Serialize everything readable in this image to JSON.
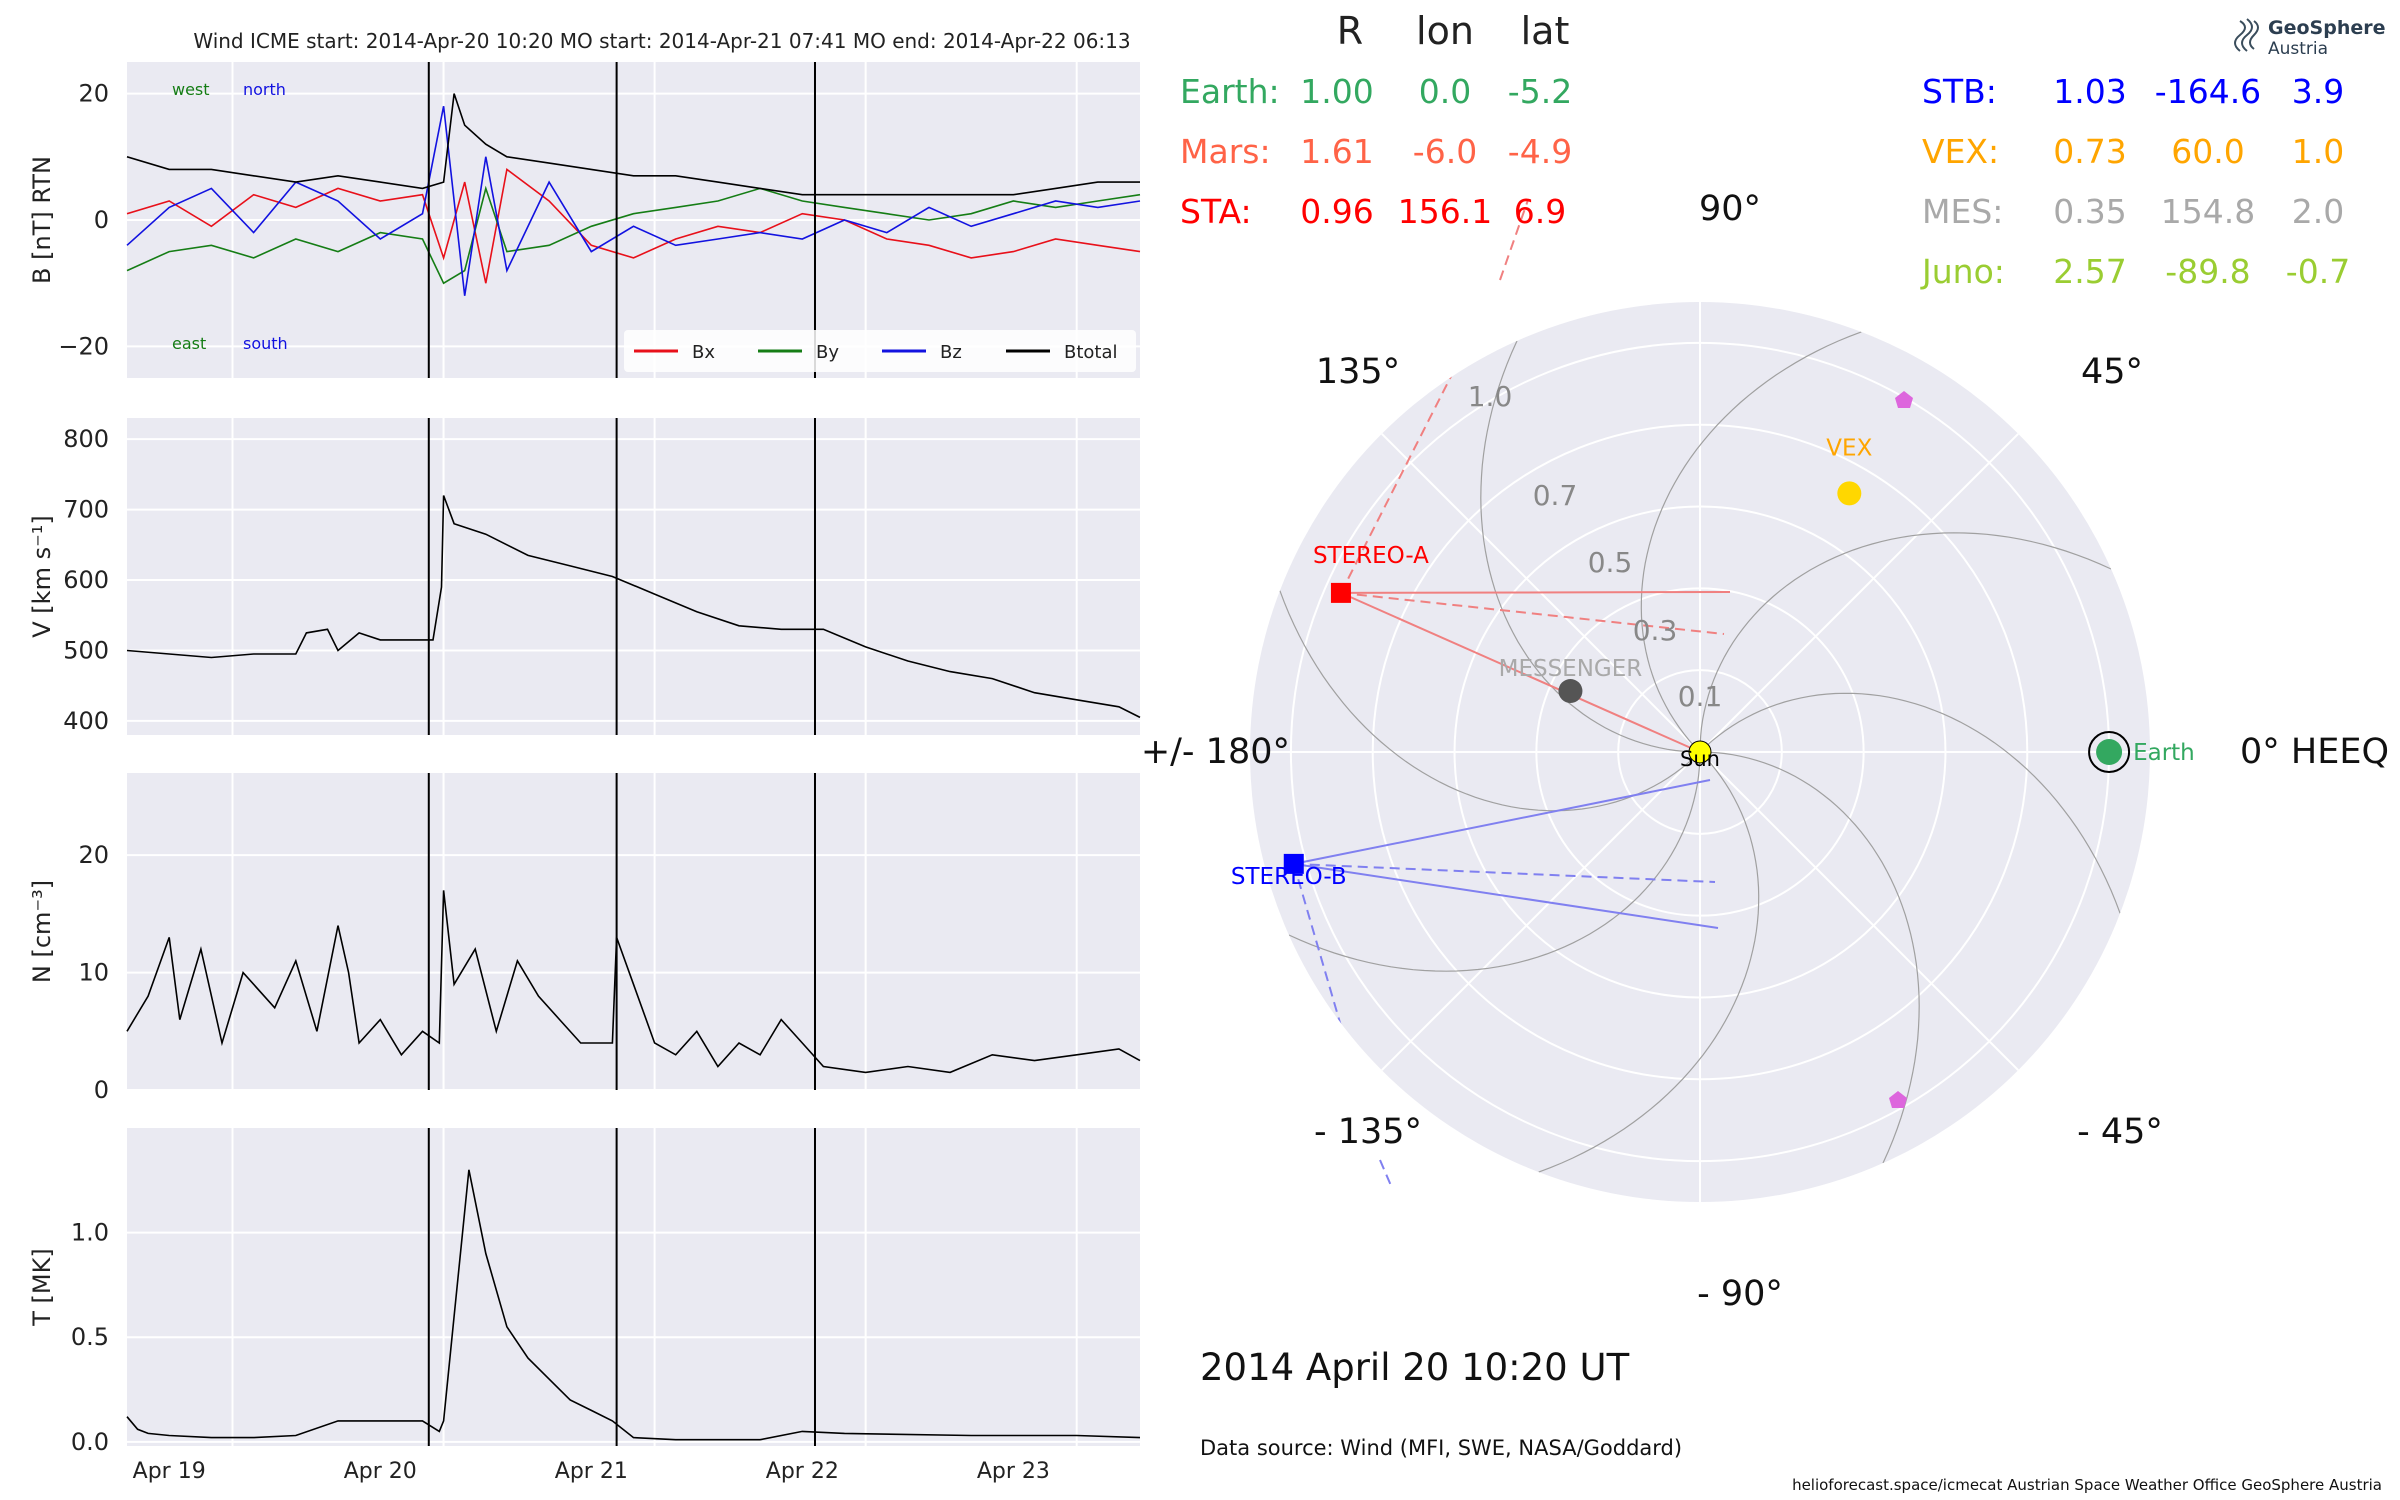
{
  "header": {
    "title": "Wind    ICME start: 2014-Apr-20 10:20   MO start: 2014-Apr-21 07:41   MO end: 2014-Apr-22 06:13"
  },
  "chart_data": [
    {
      "type": "line",
      "panel": "magnetic-field",
      "ylabel": "B [nT] RTN",
      "ylim": [
        -25,
        25
      ],
      "yticks": [
        -20,
        0,
        20
      ],
      "yticklabels": [
        "−20",
        "0",
        "20"
      ],
      "xlim_days": [
        0,
        4.8
      ],
      "xtick_labels": [
        "Apr 19",
        "Apr 20",
        "Apr 21",
        "Apr 22",
        "Apr 23"
      ],
      "annotations": {
        "west": "west",
        "north": "north",
        "east": "east",
        "south": "south"
      },
      "series": [
        {
          "name": "Bx",
          "color": "#e8101a",
          "x": [
            0,
            0.2,
            0.4,
            0.6,
            0.8,
            1.0,
            1.2,
            1.4,
            1.5,
            1.6,
            1.7,
            1.8,
            2.0,
            2.2,
            2.4,
            2.6,
            2.8,
            3.0,
            3.2,
            3.4,
            3.6,
            3.8,
            4.0,
            4.2,
            4.4,
            4.6,
            4.8
          ],
          "y": [
            1,
            3,
            -1,
            4,
            2,
            5,
            3,
            4,
            -6,
            6,
            -10,
            8,
            3,
            -4,
            -6,
            -3,
            -1,
            -2,
            1,
            0,
            -3,
            -4,
            -6,
            -5,
            -3,
            -4,
            -5
          ]
        },
        {
          "name": "By",
          "color": "#157d15",
          "x": [
            0,
            0.2,
            0.4,
            0.6,
            0.8,
            1.0,
            1.2,
            1.4,
            1.5,
            1.6,
            1.7,
            1.8,
            2.0,
            2.2,
            2.4,
            2.6,
            2.8,
            3.0,
            3.2,
            3.4,
            3.6,
            3.8,
            4.0,
            4.2,
            4.4,
            4.6,
            4.8
          ],
          "y": [
            -8,
            -5,
            -4,
            -6,
            -3,
            -5,
            -2,
            -3,
            -10,
            -8,
            5,
            -5,
            -4,
            -1,
            1,
            2,
            3,
            5,
            3,
            2,
            1,
            0,
            1,
            3,
            2,
            3,
            4
          ]
        },
        {
          "name": "Bz",
          "color": "#1212e0",
          "x": [
            0,
            0.2,
            0.4,
            0.6,
            0.8,
            1.0,
            1.2,
            1.4,
            1.5,
            1.6,
            1.7,
            1.8,
            2.0,
            2.2,
            2.4,
            2.6,
            2.8,
            3.0,
            3.2,
            3.4,
            3.6,
            3.8,
            4.0,
            4.2,
            4.4,
            4.6,
            4.8
          ],
          "y": [
            -4,
            2,
            5,
            -2,
            6,
            3,
            -3,
            1,
            18,
            -12,
            10,
            -8,
            6,
            -5,
            -1,
            -4,
            -3,
            -2,
            -3,
            0,
            -2,
            2,
            -1,
            1,
            3,
            2,
            3
          ]
        },
        {
          "name": "Btotal",
          "color": "#000000",
          "x": [
            0,
            0.2,
            0.4,
            0.6,
            0.8,
            1.0,
            1.2,
            1.4,
            1.5,
            1.55,
            1.6,
            1.7,
            1.8,
            2.0,
            2.2,
            2.4,
            2.6,
            2.8,
            3.0,
            3.2,
            3.4,
            3.6,
            3.8,
            4.0,
            4.2,
            4.4,
            4.6,
            4.8
          ],
          "y": [
            10,
            8,
            8,
            7,
            6,
            7,
            6,
            5,
            6,
            20,
            15,
            12,
            10,
            9,
            8,
            7,
            7,
            6,
            5,
            4,
            4,
            4,
            4,
            4,
            4,
            5,
            6,
            6
          ]
        }
      ]
    },
    {
      "type": "line",
      "panel": "speed",
      "ylabel": "V [km s⁻¹]",
      "ylim": [
        380,
        830
      ],
      "yticks": [
        400,
        500,
        600,
        700,
        800
      ],
      "series": [
        {
          "name": "V",
          "color": "#000000",
          "x": [
            0,
            0.2,
            0.4,
            0.6,
            0.8,
            0.85,
            0.95,
            1.0,
            1.1,
            1.2,
            1.3,
            1.45,
            1.49,
            1.5,
            1.55,
            1.7,
            1.9,
            2.1,
            2.3,
            2.5,
            2.7,
            2.9,
            3.1,
            3.3,
            3.5,
            3.7,
            3.9,
            4.1,
            4.3,
            4.5,
            4.7,
            4.8
          ],
          "y": [
            500,
            495,
            490,
            495,
            495,
            525,
            530,
            500,
            525,
            515,
            515,
            515,
            590,
            720,
            680,
            665,
            635,
            620,
            605,
            580,
            555,
            535,
            530,
            530,
            505,
            485,
            470,
            460,
            440,
            430,
            420,
            405
          ]
        }
      ]
    },
    {
      "type": "line",
      "panel": "density",
      "ylabel": "N [cm⁻³]",
      "ylim": [
        0,
        27
      ],
      "yticks": [
        0,
        10,
        20
      ],
      "series": [
        {
          "name": "N",
          "color": "#000000",
          "x": [
            0,
            0.1,
            0.2,
            0.25,
            0.35,
            0.45,
            0.55,
            0.7,
            0.8,
            0.9,
            1.0,
            1.05,
            1.1,
            1.2,
            1.3,
            1.4,
            1.48,
            1.5,
            1.55,
            1.65,
            1.75,
            1.85,
            1.95,
            2.05,
            2.15,
            2.3,
            2.32,
            2.4,
            2.5,
            2.6,
            2.7,
            2.8,
            2.9,
            3.0,
            3.1,
            3.2,
            3.3,
            3.5,
            3.7,
            3.9,
            4.1,
            4.3,
            4.5,
            4.7,
            4.8
          ],
          "y": [
            5,
            8,
            13,
            6,
            12,
            4,
            10,
            7,
            11,
            5,
            14,
            10,
            4,
            6,
            3,
            5,
            4,
            17,
            9,
            12,
            5,
            11,
            8,
            6,
            4,
            4,
            13,
            9,
            4,
            3,
            5,
            2,
            4,
            3,
            6,
            4,
            2,
            1.5,
            2,
            1.5,
            3,
            2.5,
            3,
            3.5,
            2.5
          ]
        }
      ]
    },
    {
      "type": "line",
      "panel": "temperature",
      "ylabel": "T [MK]",
      "ylim": [
        -0.02,
        1.5
      ],
      "yticks": [
        0.0,
        0.5,
        1.0
      ],
      "yticklabels": [
        "0.0",
        "0.5",
        "1.0"
      ],
      "series": [
        {
          "name": "T",
          "color": "#000000",
          "x": [
            0,
            0.05,
            0.1,
            0.2,
            0.4,
            0.6,
            0.8,
            1.0,
            1.4,
            1.48,
            1.5,
            1.55,
            1.62,
            1.7,
            1.8,
            1.9,
            2.0,
            2.1,
            2.2,
            2.3,
            2.4,
            2.6,
            3.0,
            3.2,
            3.4,
            4.0,
            4.5,
            4.8
          ],
          "y": [
            0.12,
            0.06,
            0.04,
            0.03,
            0.02,
            0.02,
            0.03,
            0.1,
            0.1,
            0.05,
            0.1,
            0.6,
            1.3,
            0.9,
            0.55,
            0.4,
            0.3,
            0.2,
            0.15,
            0.1,
            0.02,
            0.01,
            0.01,
            0.05,
            0.04,
            0.03,
            0.03,
            0.02
          ]
        }
      ]
    }
  ],
  "event_lines_days": [
    1.43,
    2.32,
    3.26
  ],
  "positions_table": {
    "headers": [
      "R",
      "lon",
      "lat"
    ],
    "left": [
      {
        "name": "Earth:",
        "r": "1.00",
        "lon": "0.0",
        "lat": "-5.2",
        "color": "#33a860"
      },
      {
        "name": "Mars:",
        "r": "1.61",
        "lon": "-6.0",
        "lat": "-4.9",
        "color": "#ff6347"
      },
      {
        "name": "STA:",
        "r": "0.96",
        "lon": "156.1",
        "lat": "6.9",
        "color": "#ff0000"
      }
    ],
    "right": [
      {
        "name": "STB:",
        "r": "1.03",
        "lon": "-164.6",
        "lat": "3.9",
        "color": "#0000ff"
      },
      {
        "name": "VEX:",
        "r": "0.73",
        "lon": "60.0",
        "lat": "1.0",
        "color": "#ffa500"
      },
      {
        "name": "MES:",
        "r": "0.35",
        "lon": "154.8",
        "lat": "2.0",
        "color": "#a9a9a9"
      },
      {
        "name": "Juno:",
        "r": "2.57",
        "lon": "-89.8",
        "lat": "-0.7",
        "color": "#9acd32"
      }
    ]
  },
  "polar": {
    "angle_labels": [
      "90°",
      "45°",
      "0° HEEQ",
      "- 45°",
      "- 90°",
      "- 135°",
      "+/- 180°",
      "135°"
    ],
    "radial_labels": [
      "0.1",
      "0.3",
      "0.5",
      "0.7",
      "1.0"
    ],
    "objects": [
      {
        "label": "Earth",
        "r": 1.0,
        "lon": 0.0,
        "color": "#33a860"
      },
      {
        "label": "VEX",
        "r": 0.73,
        "lon": 60.0,
        "color": "#ffd700"
      },
      {
        "label": "MESSENGER",
        "r": 0.35,
        "lon": 154.8,
        "color": "#555555"
      },
      {
        "label": "STEREO-A",
        "r": 0.96,
        "lon": 156.1,
        "color": "#ff0000"
      },
      {
        "label": "STEREO-B",
        "r": 1.03,
        "lon": -164.6,
        "color": "#0000ff"
      },
      {
        "label": "Sun",
        "r": 0.0,
        "lon": 0.0,
        "color": "#ffff00"
      }
    ]
  },
  "footer": {
    "date": "2014 April 20  10:20 UT",
    "source": "Data source: Wind (MFI, SWE, NASA/Goddard)",
    "credits": "helioforecast.space/icmecat   Austrian Space Weather Office   GeoSphere Austria"
  },
  "logo": {
    "line1": "GeoSphere",
    "line2": "Austria"
  },
  "colors": {
    "panel_bg": "#eaeaf2",
    "grid": "#ffffff"
  }
}
